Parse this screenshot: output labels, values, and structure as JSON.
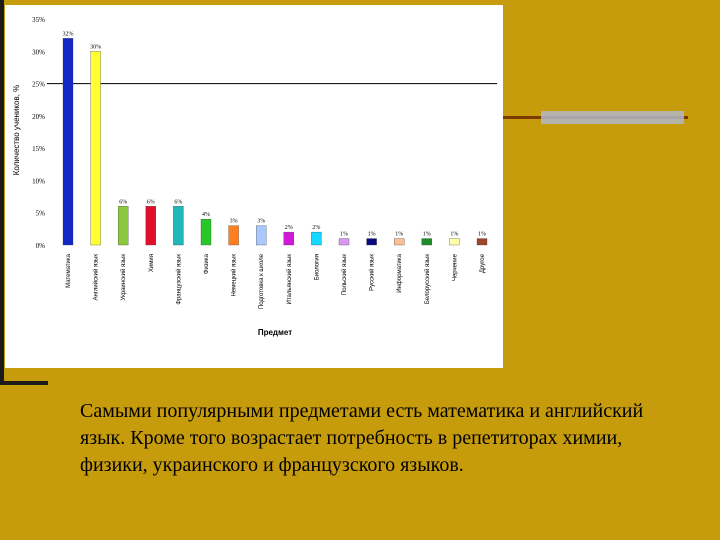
{
  "colors": {
    "background": "#c69c0c",
    "panel": "#ffffff",
    "text": "#000000"
  },
  "caption": "Самыми популярными предметами есть математика и английский язык. Кроме того возрастает потребность в репетиторах химии, физики, украинского и французского языков.",
  "chart_data": {
    "type": "bar",
    "title": "",
    "xlabel": "Предмет",
    "ylabel": "Количество учеников, %",
    "ylim": [
      0,
      35
    ],
    "yticks": [
      "0%",
      "5%",
      "10%",
      "15%",
      "20%",
      "25%",
      "30%",
      "35%"
    ],
    "reference_line": 25,
    "grid": false,
    "categories": [
      "Математика",
      "Английский язык",
      "Украинский язык",
      "Химия",
      "Французский язык",
      "Физика",
      "Немецкий язык",
      "Подготовка к школе",
      "Итальянский язык",
      "Биология",
      "Польский язык",
      "Русский язык",
      "Информатика",
      "Белорусский язык",
      "Черчение",
      "Другое"
    ],
    "values": [
      32,
      30,
      6,
      6,
      6,
      4,
      3,
      3,
      2,
      2,
      1,
      1,
      1,
      1,
      1,
      1
    ],
    "data_labels": [
      "32%",
      "30%",
      "6%",
      "6%",
      "6%",
      "4%",
      "3%",
      "3%",
      "2%",
      "2%",
      "1%",
      "1%",
      "1%",
      "1%",
      "1%",
      "1%"
    ],
    "bar_colors": [
      "#1428c8",
      "#ffff33",
      "#8cc83c",
      "#e0102a",
      "#20b8b8",
      "#28c828",
      "#ff7f1e",
      "#a8c8ff",
      "#d01ad8",
      "#14d8ff",
      "#d898f0",
      "#0a0a80",
      "#ffbe96",
      "#1e8c28",
      "#ffffaa",
      "#a04628"
    ]
  }
}
